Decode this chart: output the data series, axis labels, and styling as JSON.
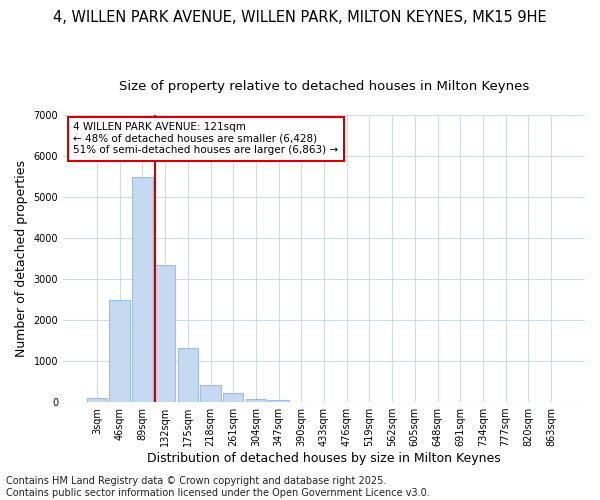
{
  "title_line1": "4, WILLEN PARK AVENUE, WILLEN PARK, MILTON KEYNES, MK15 9HE",
  "title_line2": "Size of property relative to detached houses in Milton Keynes",
  "xlabel": "Distribution of detached houses by size in Milton Keynes",
  "ylabel": "Number of detached properties",
  "categories": [
    "3sqm",
    "46sqm",
    "89sqm",
    "132sqm",
    "175sqm",
    "218sqm",
    "261sqm",
    "304sqm",
    "347sqm",
    "390sqm",
    "433sqm",
    "476sqm",
    "519sqm",
    "562sqm",
    "605sqm",
    "648sqm",
    "691sqm",
    "734sqm",
    "777sqm",
    "820sqm",
    "863sqm"
  ],
  "values": [
    100,
    2500,
    5500,
    3350,
    1330,
    420,
    220,
    80,
    40,
    5,
    0,
    0,
    0,
    0,
    0,
    0,
    0,
    0,
    0,
    0,
    0
  ],
  "bar_color": "#c5d9f0",
  "bar_edge_color": "#a0bede",
  "vline_color": "#cc0000",
  "annotation_text": "4 WILLEN PARK AVENUE: 121sqm\n← 48% of detached houses are smaller (6,428)\n51% of semi-detached houses are larger (6,863) →",
  "annotation_box_color": "#ffffff",
  "annotation_box_edge": "#cc0000",
  "ylim": [
    0,
    7000
  ],
  "yticks": [
    0,
    1000,
    2000,
    3000,
    4000,
    5000,
    6000,
    7000
  ],
  "bg_color": "#ffffff",
  "grid_color": "#d0dce8",
  "footer": "Contains HM Land Registry data © Crown copyright and database right 2025.\nContains public sector information licensed under the Open Government Licence v3.0.",
  "title_fontsize": 10.5,
  "subtitle_fontsize": 9.5,
  "label_fontsize": 9,
  "tick_fontsize": 7,
  "footer_fontsize": 7,
  "annot_fontsize": 7.5
}
